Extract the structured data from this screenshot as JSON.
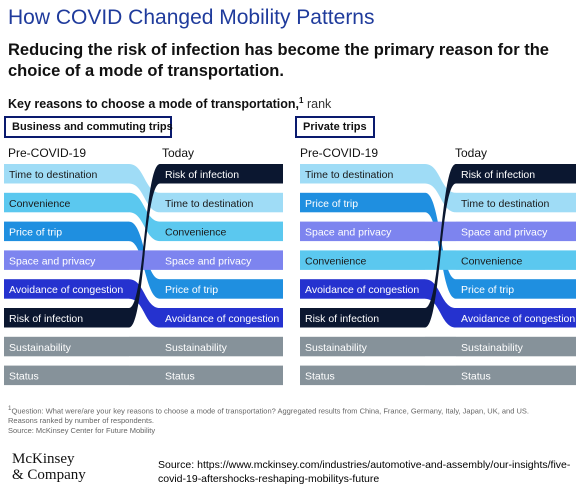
{
  "title": "How COVID Changed Mobility Patterns",
  "subtitle": "Reducing the risk of infection has become the primary reason for the choice of a mode of transportation.",
  "key_label": "Key reasons to choose a mode of transportation,",
  "key_footnote_mark": "1",
  "key_unit": "rank",
  "colors": {
    "Time to destination": "#9fdcf6",
    "Convenience": "#5bc8ef",
    "Price of trip": "#1f8fe0",
    "Space and privacy": "#7d84ef",
    "Avoidance of congestion": "#2532cf",
    "Risk of infection": "#0b1730",
    "Sustainability": "#86929a",
    "Status": "#86929a"
  },
  "chart_data": [
    {
      "type": "table",
      "title": "Business and commuting trips",
      "columns": [
        "Pre-COVID-19",
        "Today"
      ],
      "pre_covid": [
        "Time to destination",
        "Convenience",
        "Price of trip",
        "Space and privacy",
        "Avoidance of congestion",
        "Risk of infection",
        "Sustainability",
        "Status"
      ],
      "today": [
        "Risk of infection",
        "Time to destination",
        "Convenience",
        "Space and privacy",
        "Price of trip",
        "Avoidance of congestion",
        "Sustainability",
        "Status"
      ]
    },
    {
      "type": "table",
      "title": "Private trips",
      "columns": [
        "Pre-COVID-19",
        "Today"
      ],
      "pre_covid": [
        "Time to destination",
        "Price of trip",
        "Space and privacy",
        "Convenience",
        "Avoidance of congestion",
        "Risk of infection",
        "Sustainability",
        "Status"
      ],
      "today": [
        "Risk of infection",
        "Time to destination",
        "Space and privacy",
        "Convenience",
        "Price of trip",
        "Avoidance of congestion",
        "Sustainability",
        "Status"
      ]
    }
  ],
  "footnote": {
    "line1": "Question: What were/are your key reasons to choose a mode of transportation? Aggregated results from China, France, Germany, Italy, Japan, UK, and US.",
    "line2": "Reasons ranked by number of respondents.",
    "line3": "Source: McKinsey Center for Future Mobility",
    "mark": "1"
  },
  "logo": {
    "line1": "McKinsey",
    "line2": "& Company"
  },
  "source_text": "Source: https://www.mckinsey.com/industries/automotive-and-assembly/our-insights/five-covid-19-aftershocks-reshaping-mobilitys-future"
}
